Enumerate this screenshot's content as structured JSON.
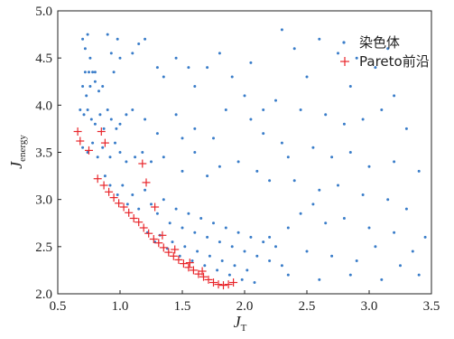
{
  "chart_data": {
    "type": "scatter",
    "title": "",
    "xlabel": "J",
    "xlabel_sub": "T",
    "ylabel": "J",
    "ylabel_sub": "energy",
    "xlim": [
      0.5,
      3.5
    ],
    "ylim": [
      2.0,
      5.0
    ],
    "xticks": [
      "0.5",
      "1.0",
      "1.5",
      "2.0",
      "2.5",
      "3.0",
      "3.5"
    ],
    "yticks": [
      "2.0",
      "2.5",
      "3.0",
      "3.5",
      "4.0",
      "4.5",
      "5.0"
    ],
    "grid": false,
    "legend_position": "top-right",
    "colors": {
      "chromosome": "#3a7dc9",
      "pareto": "#e8262b"
    },
    "series": [
      {
        "name": "染色体",
        "marker": "dot",
        "points": [
          [
            0.7,
            4.7
          ],
          [
            0.72,
            4.6
          ],
          [
            0.74,
            4.75
          ],
          [
            0.76,
            4.5
          ],
          [
            0.72,
            4.35
          ],
          [
            0.75,
            4.35
          ],
          [
            0.78,
            4.35
          ],
          [
            0.8,
            4.35
          ],
          [
            0.7,
            4.2
          ],
          [
            0.73,
            4.1
          ],
          [
            0.76,
            4.2
          ],
          [
            0.8,
            4.25
          ],
          [
            0.83,
            4.15
          ],
          [
            0.86,
            4.2
          ],
          [
            0.9,
            4.75
          ],
          [
            0.93,
            4.55
          ],
          [
            0.95,
            4.35
          ],
          [
            0.98,
            4.7
          ],
          [
            1.0,
            4.5
          ],
          [
            1.1,
            4.55
          ],
          [
            1.15,
            4.65
          ],
          [
            1.2,
            4.7
          ],
          [
            1.3,
            4.4
          ],
          [
            1.35,
            4.3
          ],
          [
            1.45,
            4.5
          ],
          [
            1.55,
            4.4
          ],
          [
            1.6,
            4.2
          ],
          [
            1.7,
            4.4
          ],
          [
            1.8,
            4.55
          ],
          [
            1.9,
            4.3
          ],
          [
            2.0,
            4.1
          ],
          [
            0.68,
            3.95
          ],
          [
            0.71,
            3.9
          ],
          [
            0.74,
            3.95
          ],
          [
            0.77,
            3.85
          ],
          [
            0.8,
            3.8
          ],
          [
            0.84,
            3.9
          ],
          [
            0.87,
            3.75
          ],
          [
            0.9,
            3.95
          ],
          [
            0.93,
            3.85
          ],
          [
            0.97,
            3.75
          ],
          [
            1.0,
            3.8
          ],
          [
            1.05,
            3.9
          ],
          [
            1.1,
            3.95
          ],
          [
            1.2,
            3.85
          ],
          [
            1.3,
            3.7
          ],
          [
            1.45,
            3.9
          ],
          [
            1.5,
            3.65
          ],
          [
            1.6,
            3.75
          ],
          [
            1.75,
            3.65
          ],
          [
            1.85,
            3.95
          ],
          [
            2.05,
            3.85
          ],
          [
            2.15,
            3.7
          ],
          [
            0.7,
            3.55
          ],
          [
            0.74,
            3.5
          ],
          [
            0.78,
            3.6
          ],
          [
            0.82,
            3.45
          ],
          [
            0.86,
            3.55
          ],
          [
            0.92,
            3.45
          ],
          [
            0.96,
            3.6
          ],
          [
            1.0,
            3.5
          ],
          [
            1.05,
            3.4
          ],
          [
            1.12,
            3.45
          ],
          [
            1.18,
            3.5
          ],
          [
            1.25,
            3.4
          ],
          [
            1.35,
            3.45
          ],
          [
            1.5,
            3.3
          ],
          [
            1.6,
            3.5
          ],
          [
            1.7,
            3.25
          ],
          [
            1.8,
            3.35
          ],
          [
            1.95,
            3.4
          ],
          [
            2.1,
            3.3
          ],
          [
            2.2,
            3.2
          ],
          [
            2.35,
            3.45
          ],
          [
            0.88,
            3.25
          ],
          [
            0.92,
            3.15
          ],
          [
            0.98,
            3.05
          ],
          [
            1.02,
            3.15
          ],
          [
            1.06,
            2.95
          ],
          [
            1.1,
            3.05
          ],
          [
            1.15,
            2.9
          ],
          [
            1.2,
            3.1
          ],
          [
            1.25,
            2.95
          ],
          [
            1.3,
            2.85
          ],
          [
            1.35,
            3.0
          ],
          [
            1.4,
            2.75
          ],
          [
            1.45,
            2.9
          ],
          [
            1.5,
            2.7
          ],
          [
            1.55,
            2.85
          ],
          [
            1.6,
            2.65
          ],
          [
            1.65,
            2.8
          ],
          [
            1.7,
            2.6
          ],
          [
            1.75,
            2.75
          ],
          [
            1.8,
            2.55
          ],
          [
            1.85,
            2.7
          ],
          [
            1.9,
            2.5
          ],
          [
            1.95,
            2.65
          ],
          [
            2.0,
            2.45
          ],
          [
            2.05,
            2.6
          ],
          [
            2.1,
            2.4
          ],
          [
            2.15,
            2.55
          ],
          [
            2.2,
            2.35
          ],
          [
            2.25,
            2.5
          ],
          [
            2.3,
            2.3
          ],
          [
            1.22,
            2.65
          ],
          [
            1.28,
            2.55
          ],
          [
            1.32,
            2.62
          ],
          [
            1.38,
            2.48
          ],
          [
            1.42,
            2.55
          ],
          [
            1.48,
            2.4
          ],
          [
            1.52,
            2.5
          ],
          [
            1.58,
            2.35
          ],
          [
            1.62,
            2.45
          ],
          [
            1.68,
            2.3
          ],
          [
            1.72,
            2.4
          ],
          [
            1.78,
            2.25
          ],
          [
            1.82,
            2.35
          ],
          [
            1.88,
            2.2
          ],
          [
            1.92,
            2.3
          ],
          [
            1.98,
            2.15
          ],
          [
            2.02,
            2.25
          ],
          [
            2.08,
            2.12
          ],
          [
            2.4,
            4.6
          ],
          [
            2.6,
            4.7
          ],
          [
            2.75,
            4.55
          ],
          [
            2.9,
            4.5
          ],
          [
            2.3,
            4.8
          ],
          [
            2.5,
            4.3
          ],
          [
            2.85,
            4.2
          ],
          [
            3.05,
            4.4
          ],
          [
            3.2,
            4.1
          ],
          [
            2.25,
            4.05
          ],
          [
            2.45,
            3.95
          ],
          [
            2.65,
            3.9
          ],
          [
            2.8,
            3.8
          ],
          [
            2.95,
            3.85
          ],
          [
            3.1,
            3.95
          ],
          [
            3.3,
            3.75
          ],
          [
            2.3,
            3.6
          ],
          [
            2.55,
            3.55
          ],
          [
            2.7,
            3.45
          ],
          [
            2.85,
            3.5
          ],
          [
            3.0,
            3.35
          ],
          [
            3.2,
            3.4
          ],
          [
            3.4,
            3.3
          ],
          [
            2.4,
            3.2
          ],
          [
            2.6,
            3.1
          ],
          [
            2.75,
            3.15
          ],
          [
            2.95,
            3.05
          ],
          [
            3.15,
            3.0
          ],
          [
            3.3,
            2.9
          ],
          [
            2.45,
            2.85
          ],
          [
            2.65,
            2.75
          ],
          [
            2.8,
            2.8
          ],
          [
            3.0,
            2.7
          ],
          [
            3.2,
            2.65
          ],
          [
            3.45,
            2.6
          ],
          [
            2.5,
            2.45
          ],
          [
            2.7,
            2.4
          ],
          [
            2.9,
            2.35
          ],
          [
            3.05,
            2.5
          ],
          [
            3.25,
            2.3
          ],
          [
            2.35,
            2.2
          ],
          [
            2.6,
            2.15
          ],
          [
            2.85,
            2.2
          ],
          [
            3.1,
            2.15
          ],
          [
            3.4,
            2.2
          ],
          [
            2.2,
            2.6
          ],
          [
            2.35,
            2.7
          ],
          [
            2.55,
            2.95
          ],
          [
            3.35,
            2.45
          ],
          [
            2.15,
            3.95
          ],
          [
            2.05,
            4.45
          ],
          [
            3.15,
            4.6
          ]
        ]
      },
      {
        "name": "Pareto前沿",
        "marker": "plus",
        "points": [
          [
            0.66,
            3.72
          ],
          [
            0.68,
            3.62
          ],
          [
            0.75,
            3.52
          ],
          [
            0.85,
            3.72
          ],
          [
            0.88,
            3.6
          ],
          [
            0.82,
            3.22
          ],
          [
            0.87,
            3.15
          ],
          [
            0.91,
            3.08
          ],
          [
            0.95,
            3.02
          ],
          [
            0.99,
            2.96
          ],
          [
            1.03,
            2.92
          ],
          [
            1.07,
            2.86
          ],
          [
            1.11,
            2.8
          ],
          [
            1.15,
            2.76
          ],
          [
            1.19,
            2.7
          ],
          [
            1.23,
            2.64
          ],
          [
            1.27,
            2.58
          ],
          [
            1.31,
            2.54
          ],
          [
            1.35,
            2.49
          ],
          [
            1.39,
            2.44
          ],
          [
            1.43,
            2.4
          ],
          [
            1.47,
            2.36
          ],
          [
            1.51,
            2.32
          ],
          [
            1.55,
            2.28
          ],
          [
            1.59,
            2.25
          ],
          [
            1.63,
            2.21
          ],
          [
            1.67,
            2.18
          ],
          [
            1.71,
            2.15
          ],
          [
            1.75,
            2.12
          ],
          [
            1.79,
            2.1
          ],
          [
            1.83,
            2.09
          ],
          [
            1.87,
            2.1
          ],
          [
            1.91,
            2.12
          ],
          [
            1.21,
            3.18
          ],
          [
            1.18,
            3.38
          ],
          [
            1.28,
            2.92
          ],
          [
            1.34,
            2.62
          ],
          [
            1.44,
            2.47
          ],
          [
            1.56,
            2.33
          ],
          [
            1.66,
            2.24
          ]
        ]
      }
    ]
  }
}
